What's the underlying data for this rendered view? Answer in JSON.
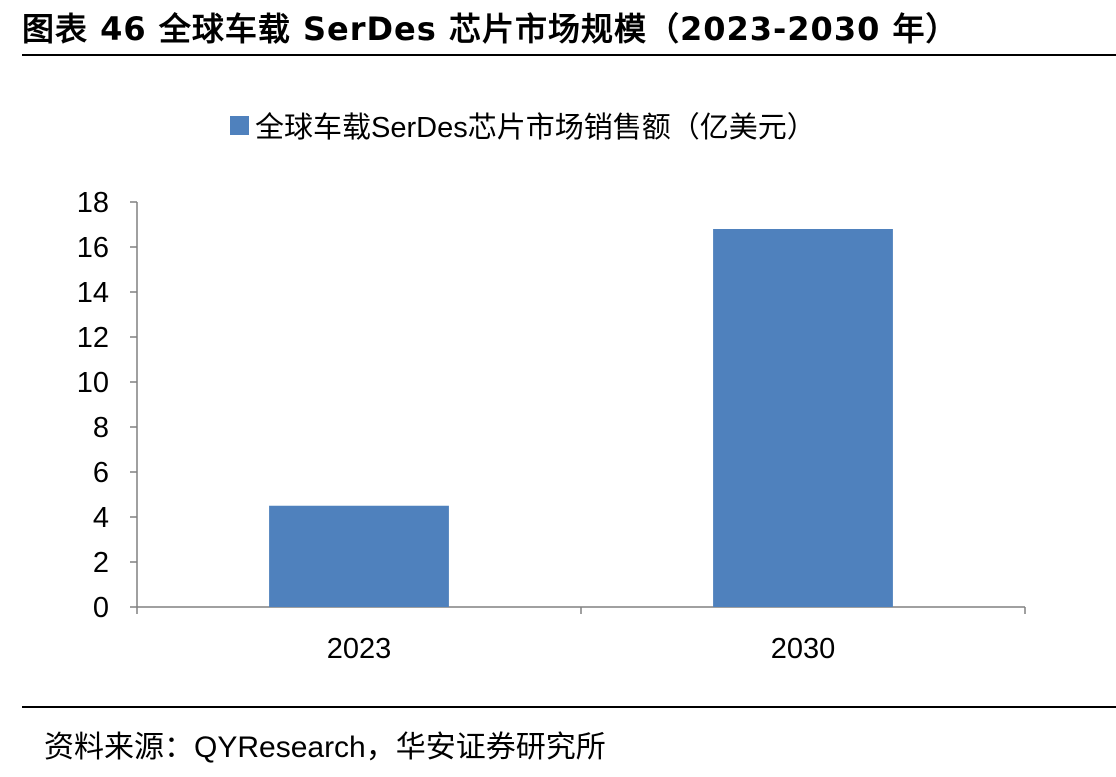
{
  "header": {
    "title": "图表 46  全球车载 SerDes 芯片市场规模（2023-2030 年）"
  },
  "footer": {
    "source": "资料来源：QYResearch，华安证券研究所"
  },
  "colors": {
    "bar": "#4f81bd",
    "axis": "#808080",
    "rule": "#000000"
  },
  "chart_data": {
    "type": "bar",
    "categories": [
      "2023",
      "2030"
    ],
    "series": [
      {
        "name": "全球车载SerDes芯片市场销售额（亿美元）",
        "values": [
          4.5,
          16.8
        ]
      }
    ],
    "ylim": [
      0,
      18
    ],
    "yticks": [
      0,
      2,
      4,
      6,
      8,
      10,
      12,
      14,
      16,
      18
    ],
    "xlabel": "",
    "ylabel": "",
    "legend": "top-center",
    "grid": false
  }
}
